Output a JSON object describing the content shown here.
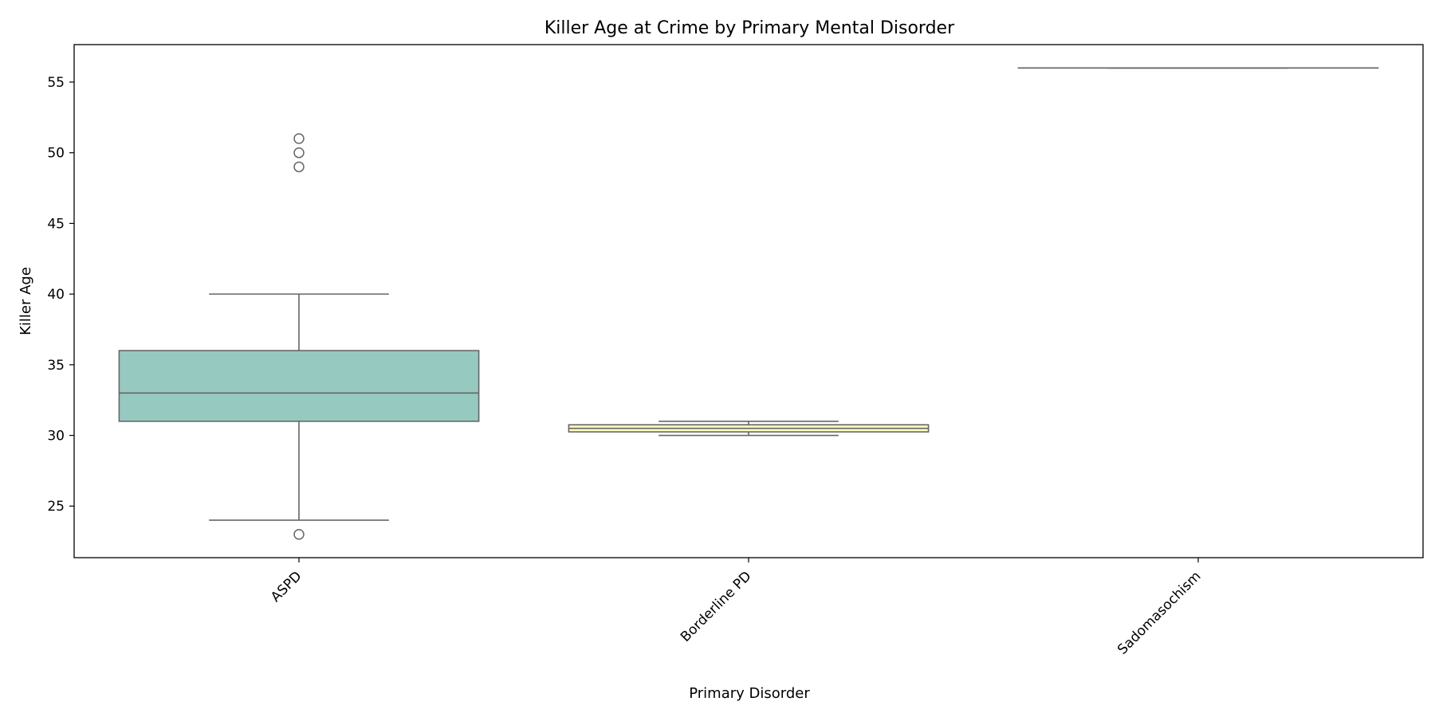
{
  "chart_data": {
    "type": "box",
    "title": "Killer Age at Crime by Primary Mental Disorder",
    "xlabel": "Primary Disorder",
    "ylabel": "Killer Age",
    "ylim": [
      21.35,
      57.65
    ],
    "yticks": [
      25,
      30,
      35,
      40,
      45,
      50,
      55
    ],
    "grid": false,
    "categories": [
      "ASPD",
      "Borderline PD",
      "Sadomasochism"
    ],
    "boxes": [
      {
        "category": "ASPD",
        "q1": 31,
        "median": 33,
        "q3": 36,
        "whisker_low": 24,
        "whisker_high": 40,
        "outliers": [
          49,
          50,
          51,
          23
        ],
        "color": "#96c9c0"
      },
      {
        "category": "Borderline PD",
        "q1": 30.25,
        "median": 30.5,
        "q3": 30.75,
        "whisker_low": 30,
        "whisker_high": 31,
        "outliers": [],
        "color": "#fdfdc0"
      },
      {
        "category": "Sadomasochism",
        "q1": 56,
        "median": 56,
        "q3": 56,
        "whisker_low": 56,
        "whisker_high": 56,
        "outliers": [],
        "color": "#c3c0d9"
      }
    ],
    "line_color": "#666666"
  }
}
